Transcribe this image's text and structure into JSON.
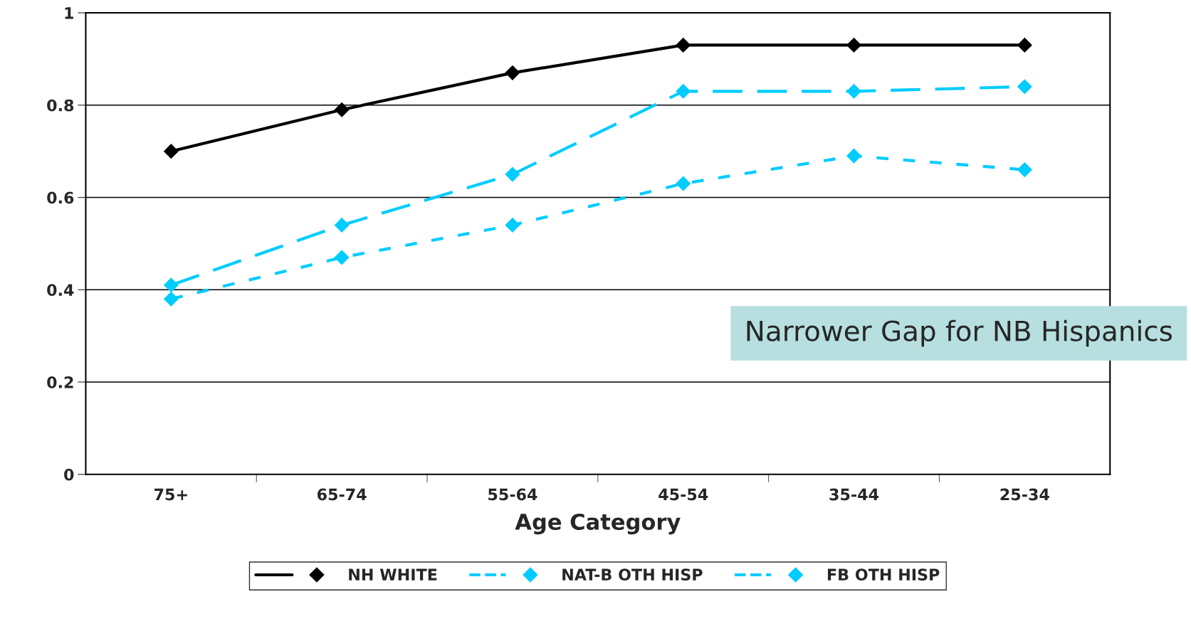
{
  "chart_data": {
    "type": "line",
    "xlabel": "Age Category",
    "categories": [
      "75+",
      "65-74",
      "55-64",
      "45-54",
      "35-44",
      "25-34"
    ],
    "series": [
      {
        "name": "NH WHITE",
        "color": "#000000",
        "line_style": "solid",
        "values": [
          0.7,
          0.79,
          0.87,
          0.93,
          0.93,
          0.93
        ]
      },
      {
        "name": "NAT-B OTH HISP",
        "color": "#00ccff",
        "line_style": "dashed",
        "values": [
          0.41,
          0.54,
          0.65,
          0.83,
          0.83,
          0.84
        ]
      },
      {
        "name": "FB OTH HISP",
        "color": "#00ccff",
        "line_style": "dotted",
        "values": [
          0.38,
          0.47,
          0.54,
          0.63,
          0.69,
          0.66
        ]
      }
    ],
    "ylim": [
      0,
      1
    ],
    "yticks": [
      0,
      0.2,
      0.4,
      0.6,
      0.8,
      1
    ],
    "grid": "y",
    "marker": "diamond",
    "legend": "bottom",
    "annotations": [
      "Narrower Gap for NB Hispanics"
    ]
  }
}
